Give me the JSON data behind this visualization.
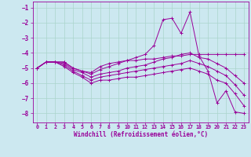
{
  "xlabel": "Windchill (Refroidissement éolien,°C)",
  "background_color": "#cce8f0",
  "grid_color": "#aad4cc",
  "line_color": "#990099",
  "x_ticks": [
    0,
    1,
    2,
    3,
    4,
    5,
    6,
    7,
    8,
    9,
    10,
    11,
    12,
    13,
    14,
    15,
    16,
    17,
    18,
    19,
    20,
    21,
    22,
    23
  ],
  "y_ticks": [
    -8,
    -7,
    -6,
    -5,
    -4,
    -3,
    -2,
    -1
  ],
  "xlim": [
    -0.5,
    23.5
  ],
  "ylim": [
    -8.6,
    -0.6
  ],
  "lines": [
    {
      "x": [
        0,
        1,
        2,
        3,
        4,
        5,
        6,
        7,
        8,
        9,
        10,
        11,
        12,
        13,
        14,
        15,
        16,
        17,
        18,
        19,
        20,
        21,
        22,
        23
      ],
      "y": [
        -5.0,
        -4.6,
        -4.6,
        -4.6,
        -5.0,
        -5.2,
        -5.3,
        -4.9,
        -4.7,
        -4.6,
        -4.5,
        -4.5,
        -4.4,
        -4.4,
        -4.3,
        -4.2,
        -4.2,
        -4.1,
        -4.1,
        -4.1,
        -4.1,
        -4.1,
        -4.1,
        -4.1
      ]
    },
    {
      "x": [
        0,
        1,
        2,
        3,
        4,
        5,
        6,
        7,
        8,
        9,
        10,
        11,
        12,
        13,
        14,
        15,
        16,
        17,
        18,
        19,
        20,
        21,
        22,
        23
      ],
      "y": [
        -5.0,
        -4.6,
        -4.6,
        -4.6,
        -5.0,
        -5.2,
        -5.4,
        -5.1,
        -4.9,
        -4.7,
        -4.5,
        -4.3,
        -4.1,
        -3.5,
        -1.8,
        -1.7,
        -2.7,
        -1.3,
        -4.2,
        -5.2,
        -7.3,
        -6.5,
        -7.9,
        -8.0
      ]
    },
    {
      "x": [
        0,
        1,
        2,
        3,
        4,
        5,
        6,
        7,
        8,
        9,
        10,
        11,
        12,
        13,
        14,
        15,
        16,
        17,
        18,
        19,
        20,
        21,
        22,
        23
      ],
      "y": [
        -5.0,
        -4.6,
        -4.6,
        -4.7,
        -5.1,
        -5.3,
        -5.6,
        -5.4,
        -5.3,
        -5.2,
        -5.0,
        -4.9,
        -4.8,
        -4.6,
        -4.4,
        -4.3,
        -4.1,
        -4.0,
        -4.3,
        -4.4,
        -4.7,
        -5.0,
        -5.5,
        -6.0
      ]
    },
    {
      "x": [
        0,
        1,
        2,
        3,
        4,
        5,
        6,
        7,
        8,
        9,
        10,
        11,
        12,
        13,
        14,
        15,
        16,
        17,
        18,
        19,
        20,
        21,
        22,
        23
      ],
      "y": [
        -5.0,
        -4.6,
        -4.6,
        -4.8,
        -5.2,
        -5.5,
        -5.8,
        -5.6,
        -5.5,
        -5.4,
        -5.3,
        -5.2,
        -5.1,
        -5.0,
        -4.9,
        -4.8,
        -4.7,
        -4.5,
        -4.7,
        -4.9,
        -5.2,
        -5.5,
        -6.1,
        -6.8
      ]
    },
    {
      "x": [
        0,
        1,
        2,
        3,
        4,
        5,
        6,
        7,
        8,
        9,
        10,
        11,
        12,
        13,
        14,
        15,
        16,
        17,
        18,
        19,
        20,
        21,
        22,
        23
      ],
      "y": [
        -5.0,
        -4.6,
        -4.6,
        -4.9,
        -5.3,
        -5.6,
        -6.0,
        -5.8,
        -5.8,
        -5.7,
        -5.6,
        -5.6,
        -5.5,
        -5.4,
        -5.3,
        -5.2,
        -5.1,
        -5.0,
        -5.2,
        -5.4,
        -5.8,
        -6.0,
        -6.7,
        -7.5
      ]
    }
  ]
}
